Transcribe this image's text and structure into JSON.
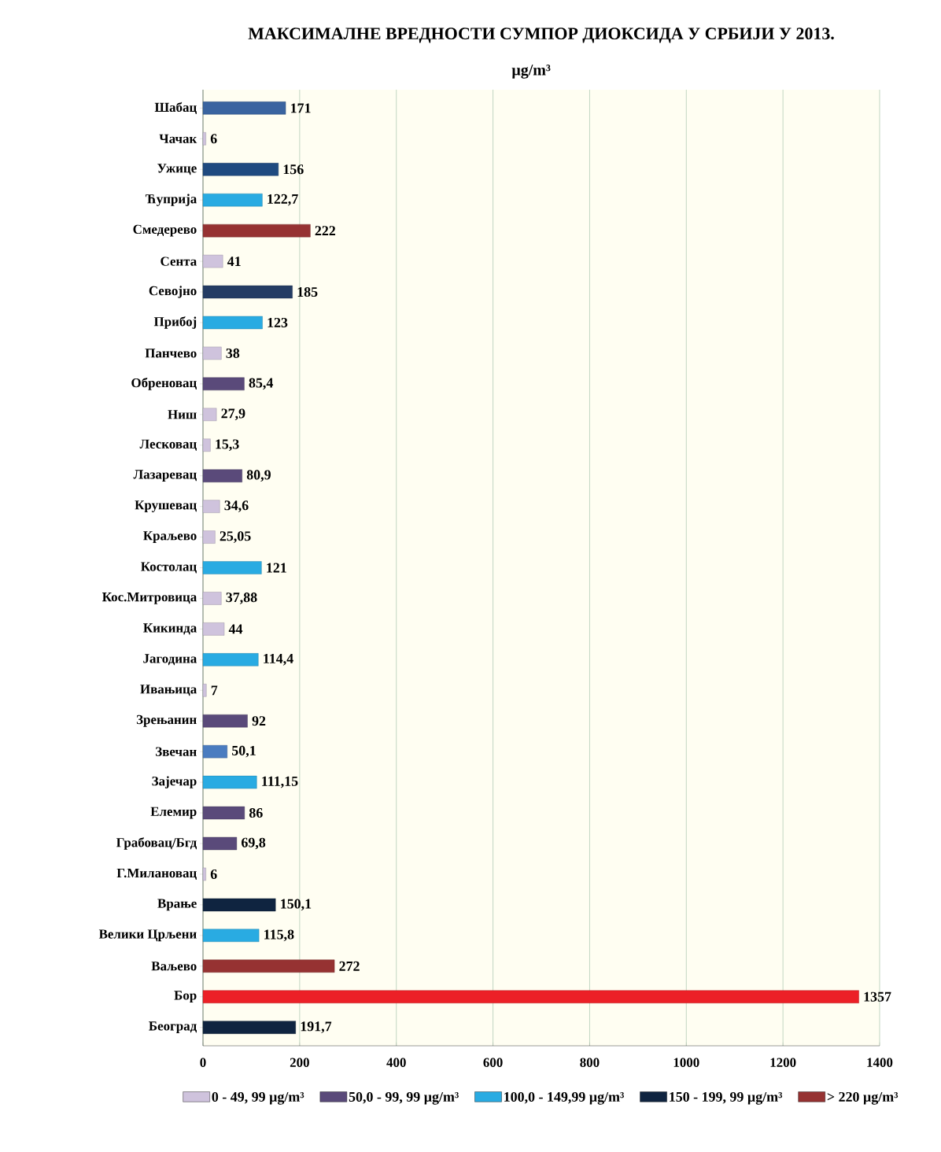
{
  "chart_data": {
    "type": "bar",
    "orientation": "horizontal",
    "title": "МАКСИМАЛНЕ ВРЕДНОСТИ СУМПОР ДИОКСИДА У СРБИЈИ У 2013.",
    "xlabel": "µg/m³",
    "categories": [
      "Шабац",
      "Чачак",
      "Ужице",
      "Ћуприја",
      "Смедерево",
      "Сента",
      "Севојно",
      "Прибој",
      "Панчево",
      "Обреновац",
      "Ниш",
      "Лесковац",
      "Лазаревац",
      "Крушевац",
      "Краљево",
      "Костолац",
      "Кос.Митровица",
      "Кикинда",
      "Јагодина",
      "Ивањица",
      "Зрењанин",
      "Звечан",
      "Зајечар",
      "Елемир",
      "Грабовац/Бгд",
      "Г.Милановац",
      "Врање",
      "Велики Црљени",
      "Ваљево",
      "Бор",
      "Београд"
    ],
    "series": [
      {
        "name": "0 - 49, 99 µg/m³",
        "color": "#cfc3dd",
        "colors": [
          null,
          "#cfc3dd",
          null,
          null,
          null,
          "#cfc3dd",
          null,
          null,
          "#cfc3dd",
          null,
          "#cfc3dd",
          "#cfc3dd",
          null,
          "#cfc3dd",
          "#cfc3dd",
          null,
          "#cfc3dd",
          "#cfc3dd",
          null,
          "#cfc3dd",
          null,
          null,
          null,
          null,
          null,
          "#cfc3dd",
          null,
          null,
          null,
          null,
          null
        ],
        "values": [
          null,
          6,
          null,
          null,
          null,
          41,
          null,
          null,
          38,
          null,
          27.9,
          15.3,
          null,
          34.6,
          25.05,
          null,
          37.88,
          44,
          null,
          7,
          null,
          null,
          null,
          null,
          null,
          6,
          null,
          null,
          null,
          null,
          null
        ],
        "value_labels": [
          null,
          "6",
          null,
          null,
          null,
          "41",
          null,
          null,
          "38",
          null,
          "27,9",
          "15,3",
          null,
          "34,6",
          "25,05",
          null,
          "37,88",
          "44",
          null,
          "7",
          null,
          null,
          null,
          null,
          null,
          "6",
          null,
          null,
          null,
          null,
          null
        ]
      },
      {
        "name": "50,0 - 99, 99 µg/m³",
        "color": "#5a4a7a",
        "colors": [
          null,
          null,
          null,
          null,
          null,
          null,
          null,
          null,
          null,
          "#5a4a7a",
          null,
          null,
          "#5a4a7a",
          null,
          null,
          null,
          null,
          null,
          null,
          null,
          "#5a4a7a",
          "#4a7cc0",
          null,
          "#5a4a7a",
          "#5a4a7a",
          null,
          null,
          null,
          null,
          null,
          null
        ],
        "values": [
          null,
          null,
          null,
          null,
          null,
          null,
          null,
          null,
          null,
          85.4,
          null,
          null,
          80.9,
          null,
          null,
          null,
          null,
          null,
          null,
          null,
          92,
          50.1,
          null,
          86,
          69.8,
          null,
          null,
          null,
          null,
          null,
          null
        ],
        "value_labels": [
          null,
          null,
          null,
          null,
          null,
          null,
          null,
          null,
          null,
          "85,4",
          null,
          null,
          "80,9",
          null,
          null,
          null,
          null,
          null,
          null,
          null,
          "92",
          "50,1",
          null,
          "86",
          "69,8",
          null,
          null,
          null,
          null,
          null,
          null
        ]
      },
      {
        "name": "100,0 - 149,99 µg/m³",
        "color": "#29abe2",
        "colors": [
          null,
          null,
          null,
          "#29abe2",
          null,
          null,
          null,
          "#29abe2",
          null,
          null,
          null,
          null,
          null,
          null,
          null,
          "#29abe2",
          null,
          null,
          "#29abe2",
          null,
          null,
          null,
          "#29abe2",
          null,
          null,
          null,
          null,
          "#29abe2",
          null,
          null,
          null
        ],
        "values": [
          null,
          null,
          null,
          122.7,
          null,
          null,
          null,
          123,
          null,
          null,
          null,
          null,
          null,
          null,
          null,
          121,
          null,
          null,
          114.4,
          null,
          null,
          null,
          111.15,
          null,
          null,
          null,
          null,
          115.8,
          null,
          null,
          null
        ],
        "value_labels": [
          null,
          null,
          null,
          "122,7",
          null,
          null,
          null,
          "123",
          null,
          null,
          null,
          null,
          null,
          null,
          null,
          "121",
          null,
          null,
          "114,4",
          null,
          null,
          null,
          "111,15",
          null,
          null,
          null,
          null,
          "115,8",
          null,
          null,
          null
        ]
      },
      {
        "name": "150 - 199, 99 µg/m³",
        "color": "#0f2440",
        "colors": [
          "#3a64a0",
          null,
          "#1f4a80",
          null,
          null,
          null,
          "#243c64",
          null,
          null,
          null,
          null,
          null,
          null,
          null,
          null,
          null,
          null,
          null,
          null,
          null,
          null,
          null,
          null,
          null,
          null,
          null,
          "#0f2440",
          null,
          null,
          null,
          "#0f2440"
        ],
        "values": [
          171,
          null,
          156,
          null,
          null,
          null,
          185,
          null,
          null,
          null,
          null,
          null,
          null,
          null,
          null,
          null,
          null,
          null,
          null,
          null,
          null,
          null,
          null,
          null,
          null,
          null,
          150.1,
          null,
          null,
          null,
          191.7
        ],
        "value_labels": [
          "171",
          null,
          "156",
          null,
          null,
          null,
          "185",
          null,
          null,
          null,
          null,
          null,
          null,
          null,
          null,
          null,
          null,
          null,
          null,
          null,
          null,
          null,
          null,
          null,
          null,
          null,
          "150,1",
          null,
          null,
          null,
          "191,7"
        ]
      },
      {
        "name": "> 220 µg/m³",
        "color": "#963232",
        "colors": [
          null,
          null,
          null,
          null,
          "#963232",
          null,
          null,
          null,
          null,
          null,
          null,
          null,
          null,
          null,
          null,
          null,
          null,
          null,
          null,
          null,
          null,
          null,
          null,
          null,
          null,
          null,
          null,
          null,
          "#963232",
          "#ec2027",
          null
        ],
        "values": [
          null,
          null,
          null,
          null,
          222,
          null,
          null,
          null,
          null,
          null,
          null,
          null,
          null,
          null,
          null,
          null,
          null,
          null,
          null,
          null,
          null,
          null,
          null,
          null,
          null,
          null,
          null,
          null,
          272,
          1357,
          null
        ],
        "value_labels": [
          null,
          null,
          null,
          null,
          "222",
          null,
          null,
          null,
          null,
          null,
          null,
          null,
          null,
          null,
          null,
          null,
          null,
          null,
          null,
          null,
          null,
          null,
          null,
          null,
          null,
          null,
          null,
          null,
          "272",
          "1357",
          null
        ]
      }
    ],
    "xlim": [
      0,
      1400
    ],
    "xticks": [
      0,
      200,
      400,
      600,
      800,
      1000,
      1200,
      1400
    ],
    "grid": "x",
    "legend": "bottom"
  }
}
